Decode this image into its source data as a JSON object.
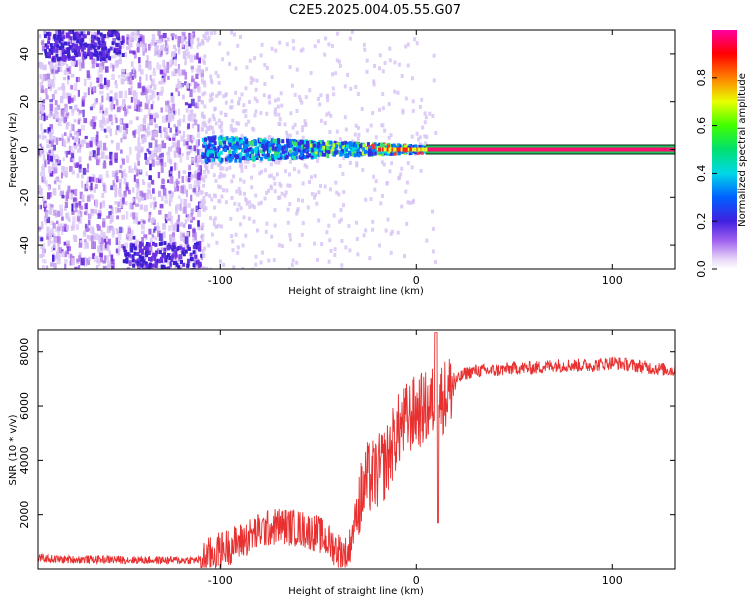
{
  "title": "C2E5.2025.004.05.55.G07",
  "chart_data": [
    {
      "type": "heatmap",
      "xlabel": "Height of straight line (km)",
      "ylabel": "Frequency (Hz)",
      "xlim": [
        -193,
        132
      ],
      "ylim": [
        -50,
        50
      ],
      "x_ticks": [
        -100,
        0,
        100
      ],
      "y_ticks": [
        -40,
        -20,
        0,
        20,
        40
      ],
      "colorbar": {
        "label": "Normalized spectral amplitude",
        "range": [
          0,
          1
        ],
        "ticks": [
          0.0,
          0.2,
          0.4,
          0.6,
          0.8
        ]
      },
      "features": {
        "noise_region_x": [
          -193,
          -110
        ],
        "signal_line_freq": 0,
        "signal_start_x": -110,
        "saturated_from_x": 5
      }
    },
    {
      "type": "line",
      "xlabel": "Height of straight line (km)",
      "ylabel": "SNR (10 * v/v)",
      "xlim": [
        -193,
        132
      ],
      "ylim": [
        0,
        8800
      ],
      "x_ticks": [
        -100,
        0,
        100
      ],
      "y_ticks": [
        2000,
        4000,
        6000,
        8000
      ],
      "color": "#e83030",
      "series": [
        {
          "x": [
            -193,
            -180,
            -160,
            -140,
            -120,
            -110,
            -100,
            -90,
            -80,
            -70,
            -60,
            -50,
            -45,
            -40,
            -35,
            -30,
            -25,
            -20,
            -15,
            -10,
            -5,
            0,
            5,
            10,
            15,
            20,
            25,
            30,
            40,
            50,
            60,
            70,
            80,
            90,
            100,
            110,
            120,
            132
          ],
          "y": [
            400,
            350,
            350,
            330,
            320,
            330,
            700,
            1000,
            1400,
            1600,
            1500,
            1300,
            1000,
            700,
            500,
            2200,
            3300,
            3500,
            4000,
            5000,
            5500,
            5800,
            5900,
            6200,
            6400,
            6900,
            7200,
            7300,
            7300,
            7400,
            7400,
            7500,
            7500,
            7500,
            7600,
            7500,
            7400,
            7300
          ]
        }
      ]
    }
  ]
}
